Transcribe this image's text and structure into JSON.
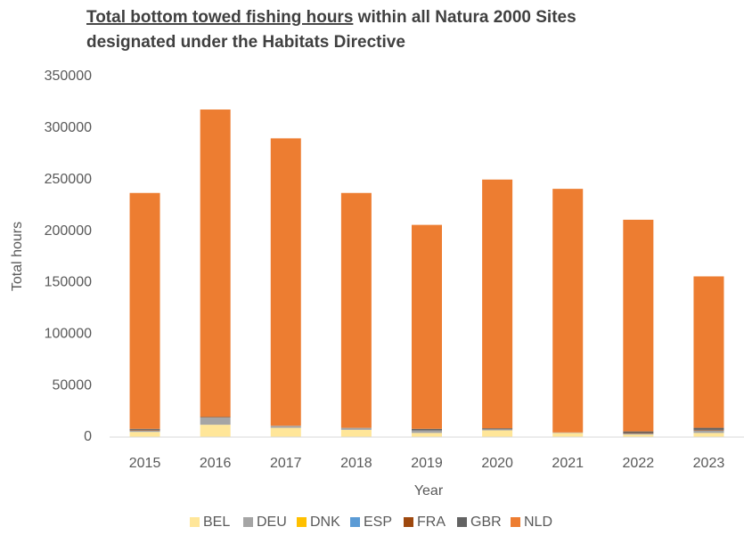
{
  "chart_data": {
    "type": "stacked_bar",
    "title": [
      "Total bottom towed fishing hours",
      "within all Natura 2000 Sites",
      "designated under the Habitats Directive"
    ],
    "x_label": "Year",
    "y_label": "Total hours",
    "categories": [
      "2015",
      "2016",
      "2017",
      "2018",
      "2019",
      "2020",
      "2021",
      "2022",
      "2023"
    ],
    "series": [
      {
        "name": "BEL",
        "color": "#ffe699",
        "values": [
          5000,
          12000,
          9000,
          7000,
          4000,
          6500,
          4000,
          2500,
          4000
        ]
      },
      {
        "name": "DEU",
        "color": "#a5a5a5",
        "values": [
          1500,
          7000,
          2000,
          2000,
          2500,
          1000,
          500,
          1000,
          2500
        ]
      },
      {
        "name": "DNK",
        "color": "#ffc000",
        "values": [
          0,
          0,
          0,
          0,
          0,
          0,
          0,
          0,
          0
        ]
      },
      {
        "name": "ESP",
        "color": "#5b9bd5",
        "values": [
          0,
          0,
          0,
          0,
          0,
          0,
          0,
          0,
          0
        ]
      },
      {
        "name": "FRA",
        "color": "#9e480e",
        "values": [
          500,
          0,
          0,
          0,
          0,
          0,
          0,
          500,
          500
        ]
      },
      {
        "name": "GBR",
        "color": "#636363",
        "values": [
          1000,
          500,
          0,
          0,
          1500,
          1000,
          0,
          1500,
          2000
        ]
      },
      {
        "name": "NLD",
        "color": "#ed7d31",
        "values": [
          229000,
          298500,
          279000,
          228000,
          198000,
          241500,
          236500,
          205500,
          147000
        ]
      }
    ],
    "ylim": [
      0,
      350000
    ],
    "yticks": [
      0,
      50000,
      100000,
      150000,
      200000,
      250000,
      300000,
      350000
    ],
    "grid": false,
    "legend": "bottom"
  }
}
